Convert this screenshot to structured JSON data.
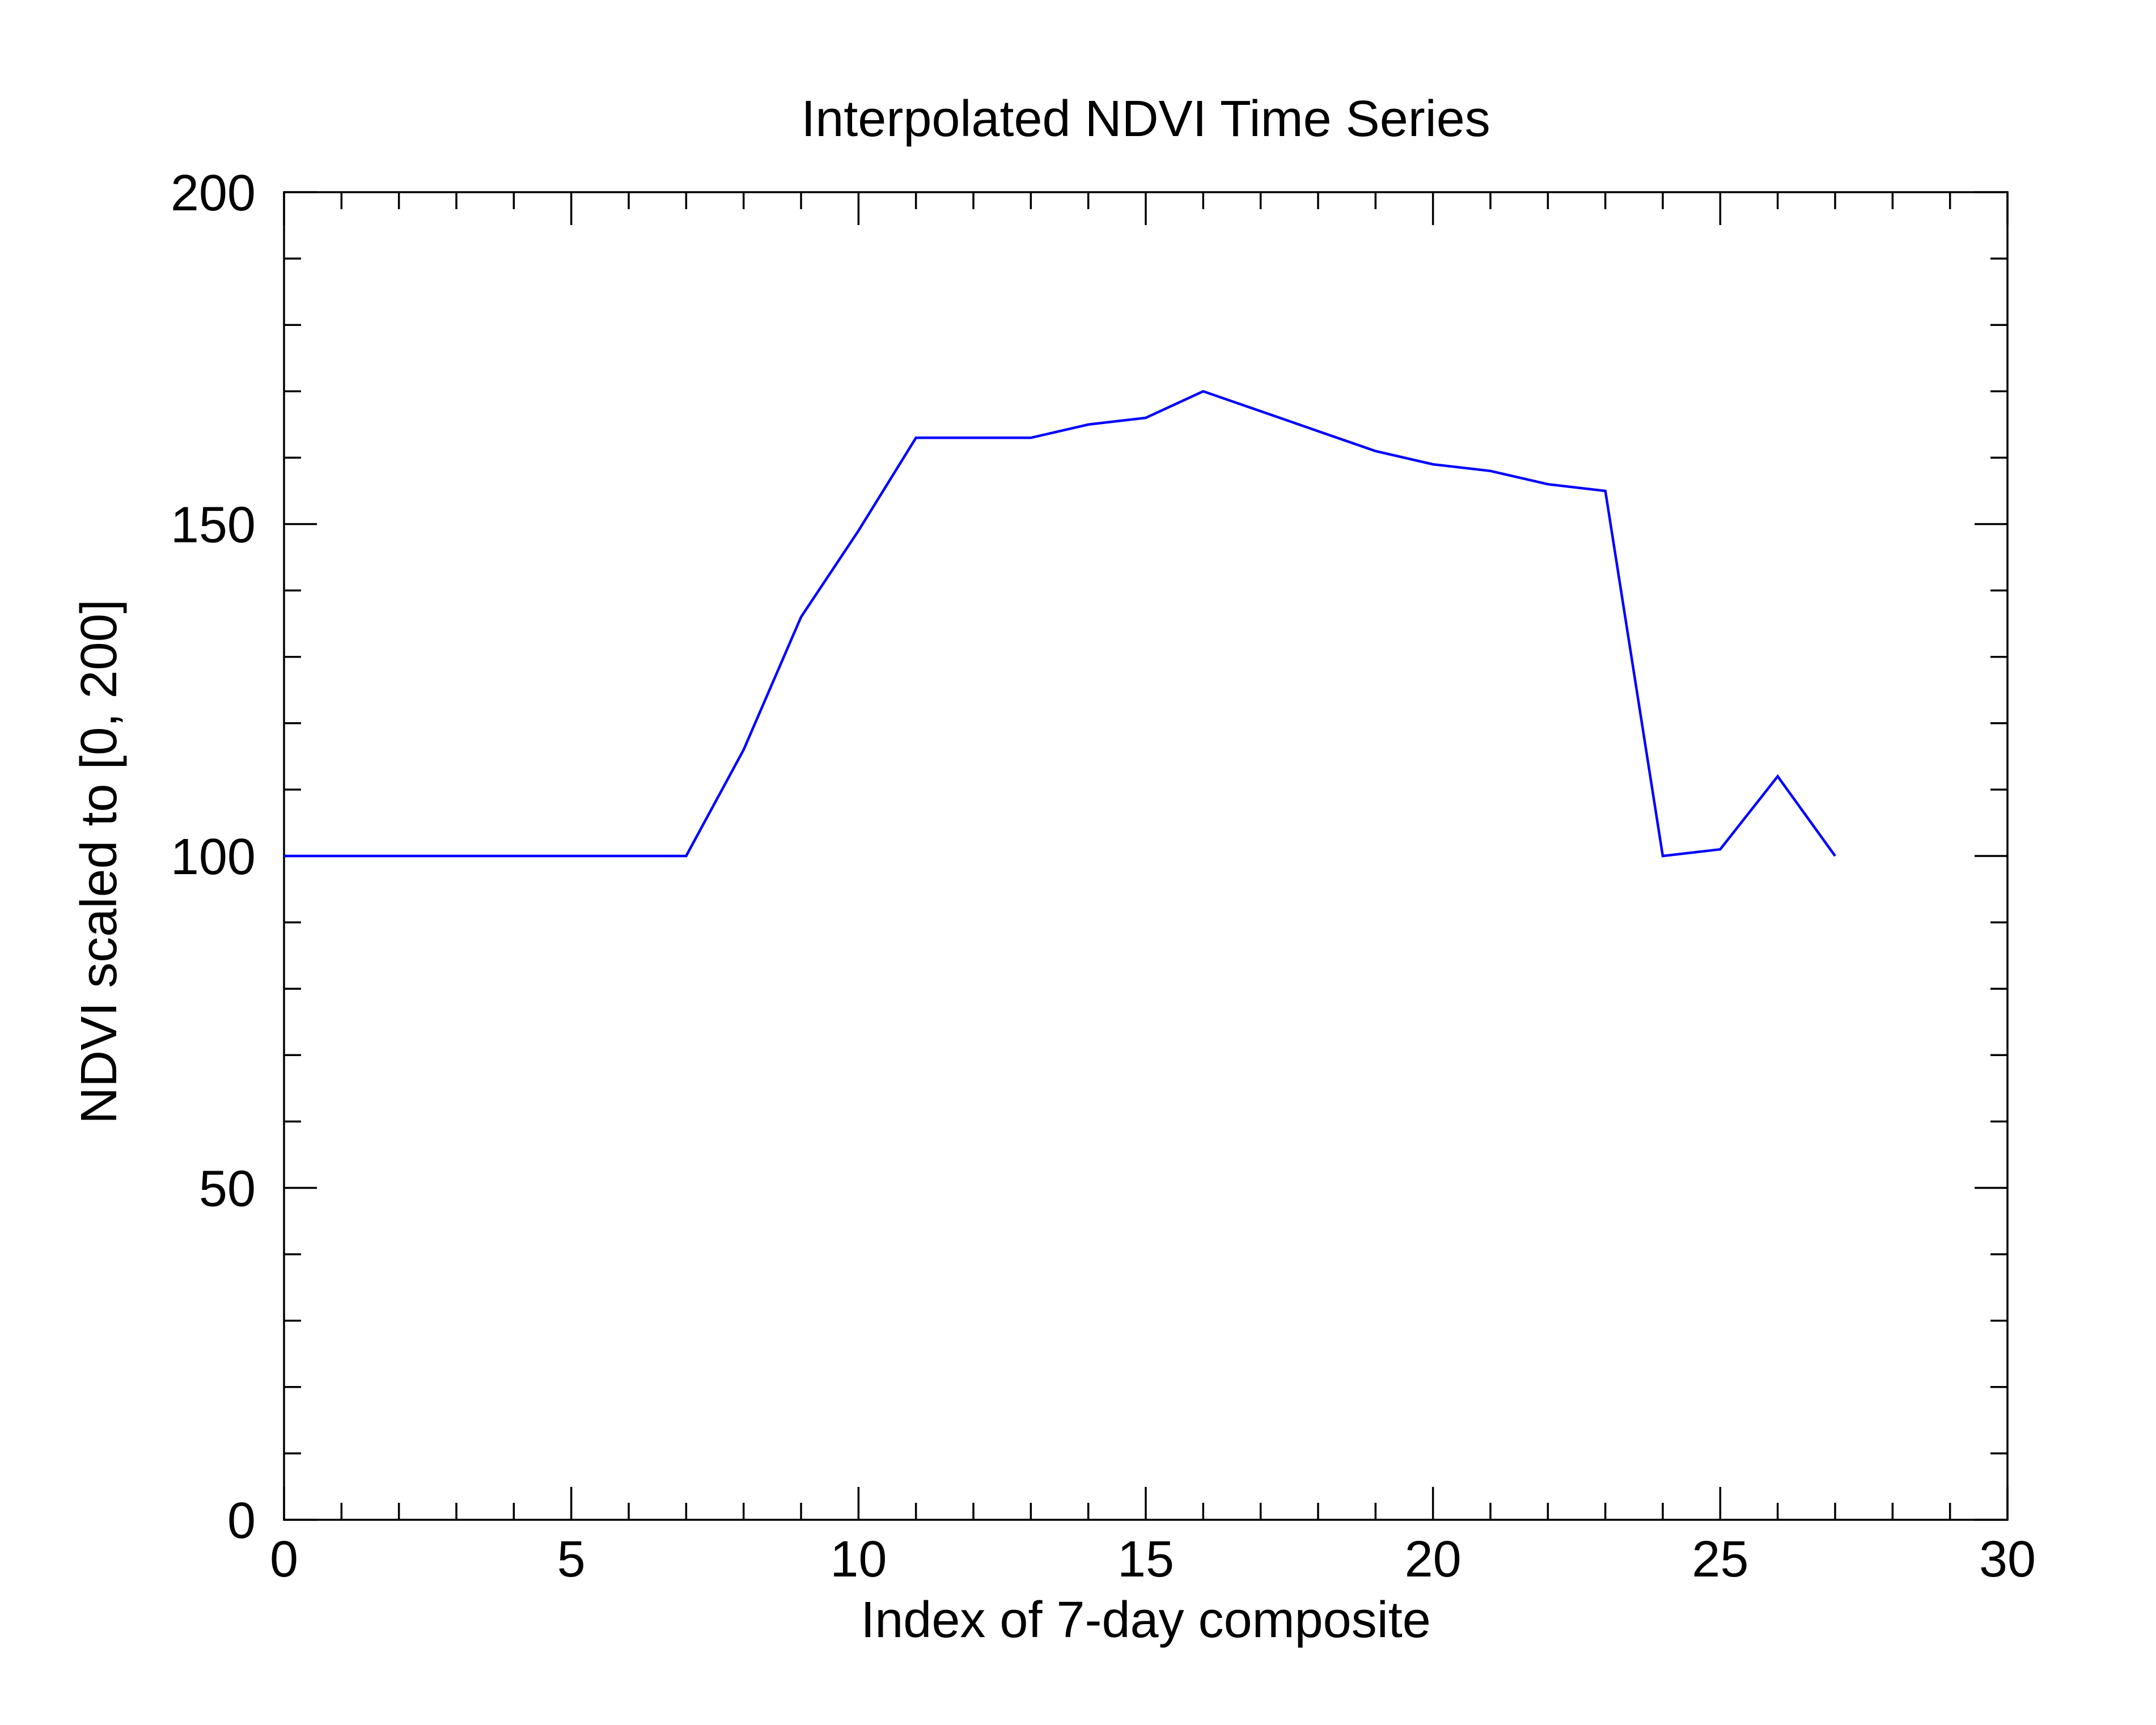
{
  "chart_data": {
    "type": "line",
    "title": "Interpolated NDVI Time Series",
    "xlabel": "Index of 7-day composite",
    "ylabel": "NDVI scaled to [0, 200]",
    "xlim": [
      0,
      30
    ],
    "ylim": [
      0,
      200
    ],
    "x_major_ticks": [
      0,
      5,
      10,
      15,
      20,
      25,
      30
    ],
    "x_tick_labels": [
      "0",
      "5",
      "10",
      "15",
      "20",
      "25",
      "30"
    ],
    "x_minor_step": 1,
    "y_major_ticks": [
      0,
      50,
      100,
      150,
      200
    ],
    "y_tick_labels": [
      "0",
      "50",
      "100",
      "150",
      "200"
    ],
    "y_minor_step": 10,
    "grid": false,
    "line_color": "#0000ff",
    "axis_color": "#000000",
    "series": [
      {
        "x": [
          0,
          1,
          2,
          3,
          4,
          5,
          6,
          7,
          8,
          9,
          10,
          11,
          12,
          13,
          14,
          15,
          16,
          17,
          18,
          19,
          20,
          21,
          22,
          23,
          24,
          25,
          26,
          27
        ],
        "y": [
          100,
          100,
          100,
          100,
          100,
          100,
          100,
          100,
          116,
          136,
          149,
          163,
          163,
          163,
          165,
          166,
          170,
          167,
          164,
          161,
          159,
          158,
          156,
          155,
          100,
          101,
          112,
          100
        ]
      }
    ]
  }
}
